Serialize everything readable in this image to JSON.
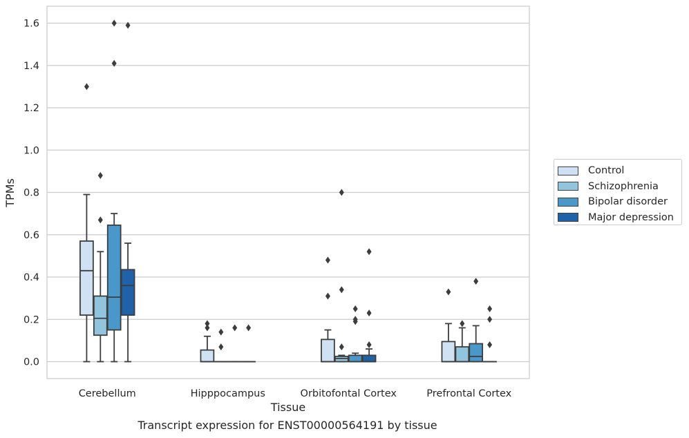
{
  "chart_data": {
    "type": "boxplot",
    "xlabel": "Tissue",
    "ylabel": "TPMs",
    "caption": "Transcript expression for ENST00000564191 by tissue",
    "ylim": [
      -0.08,
      1.68
    ],
    "yticks": [
      0.0,
      0.2,
      0.4,
      0.6,
      0.8,
      1.0,
      1.2,
      1.4,
      1.6
    ],
    "ytick_labels": [
      "0.0",
      "0.2",
      "0.4",
      "0.6",
      "0.8",
      "1.0",
      "1.2",
      "1.4",
      "1.6"
    ],
    "grid": "horizontal",
    "legend_position": "right-outside",
    "categories": [
      "Cerebellum",
      "Hipppocampus",
      "Orbitofontal Cortex",
      "Prefrontal Cortex"
    ],
    "series": [
      {
        "name": "Control",
        "color": "#cfe1f2",
        "boxes": [
          {
            "min": 0.0,
            "q1": 0.22,
            "median": 0.43,
            "q3": 0.57,
            "max": 0.79,
            "outliers": [
              1.3
            ]
          },
          {
            "min": 0.0,
            "q1": 0.0,
            "median": 0.0,
            "q3": 0.055,
            "max": 0.12,
            "outliers": [
              0.16,
              0.18
            ]
          },
          {
            "min": 0.0,
            "q1": 0.0,
            "median": 0.0,
            "q3": 0.105,
            "max": 0.15,
            "outliers": [
              0.31,
              0.48
            ]
          },
          {
            "min": 0.0,
            "q1": 0.0,
            "median": 0.0,
            "q3": 0.095,
            "max": 0.18,
            "outliers": [
              0.33
            ]
          }
        ]
      },
      {
        "name": "Schizophrenia",
        "color": "#93c4de",
        "boxes": [
          {
            "min": 0.0,
            "q1": 0.125,
            "median": 0.205,
            "q3": 0.31,
            "max": 0.52,
            "outliers": [
              0.67,
              0.88
            ]
          },
          {
            "min": 0.0,
            "q1": 0.0,
            "median": 0.0,
            "q3": 0.0,
            "max": 0.0,
            "outliers": [
              0.07,
              0.14
            ]
          },
          {
            "min": 0.0,
            "q1": 0.0,
            "median": 0.015,
            "q3": 0.025,
            "max": 0.03,
            "outliers": [
              0.07,
              0.34,
              0.8
            ]
          },
          {
            "min": 0.0,
            "q1": 0.0,
            "median": 0.0,
            "q3": 0.07,
            "max": 0.16,
            "outliers": [
              0.18
            ]
          }
        ]
      },
      {
        "name": "Bipolar disorder",
        "color": "#4a98c9",
        "boxes": [
          {
            "min": 0.0,
            "q1": 0.15,
            "median": 0.305,
            "q3": 0.645,
            "max": 0.7,
            "outliers": [
              1.41,
              1.6
            ]
          },
          {
            "min": 0.0,
            "q1": 0.0,
            "median": 0.0,
            "q3": 0.0,
            "max": 0.0,
            "outliers": [
              0.16
            ]
          },
          {
            "min": 0.0,
            "q1": 0.0,
            "median": 0.0,
            "q3": 0.03,
            "max": 0.04,
            "outliers": [
              0.19,
              0.2,
              0.25
            ]
          },
          {
            "min": 0.0,
            "q1": 0.0,
            "median": 0.025,
            "q3": 0.085,
            "max": 0.17,
            "outliers": [
              0.38
            ]
          }
        ]
      },
      {
        "name": "Major depression",
        "color": "#1f62a8",
        "boxes": [
          {
            "min": 0.0,
            "q1": 0.22,
            "median": 0.36,
            "q3": 0.435,
            "max": 0.56,
            "outliers": [
              1.59
            ]
          },
          {
            "min": 0.0,
            "q1": 0.0,
            "median": 0.0,
            "q3": 0.0,
            "max": 0.0,
            "outliers": [
              0.16
            ]
          },
          {
            "min": 0.0,
            "q1": 0.0,
            "median": 0.0,
            "q3": 0.03,
            "max": 0.06,
            "outliers": [
              0.08,
              0.23,
              0.52
            ]
          },
          {
            "min": 0.0,
            "q1": 0.0,
            "median": 0.0,
            "q3": 0.0,
            "max": 0.0,
            "outliers": [
              0.08,
              0.2,
              0.25
            ]
          }
        ]
      }
    ]
  }
}
